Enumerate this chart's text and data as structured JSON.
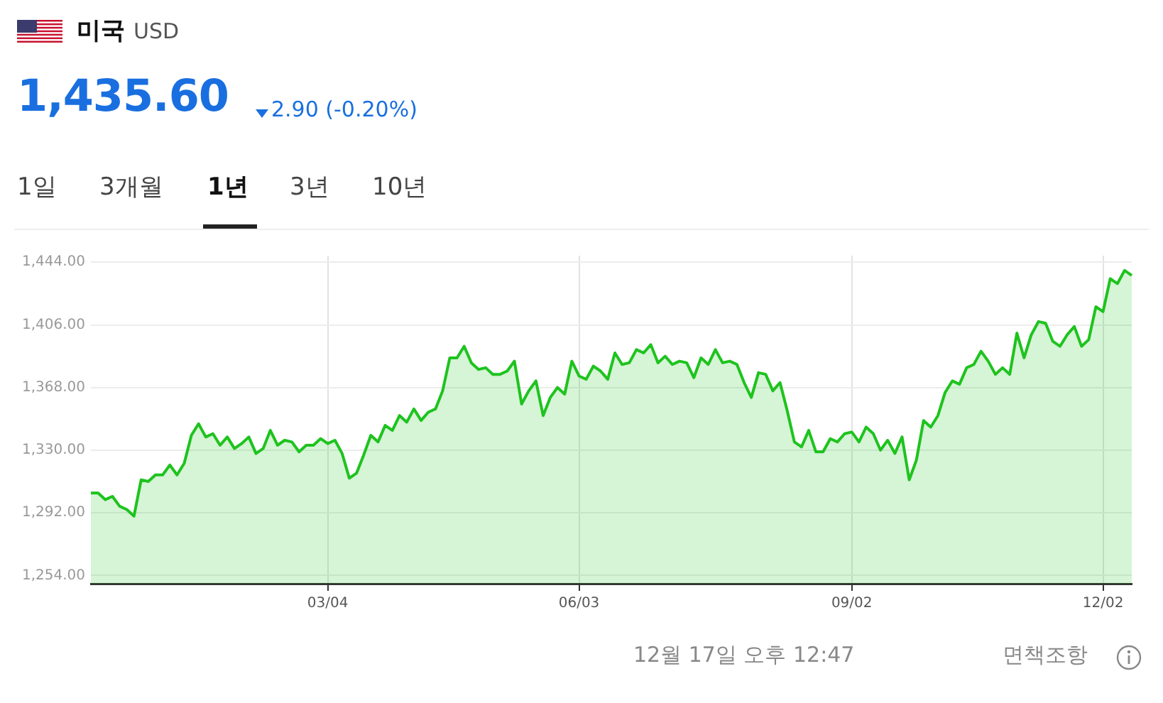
{
  "chart_data": {
    "type": "area",
    "title": "미국",
    "subtitle": "USD",
    "annotations": [
      "1,435.60",
      "2.90 (-0.20%)",
      "1일",
      "3개월",
      "1년",
      "3년",
      "10년",
      "12월 17일 오후 12:47",
      "면책조항"
    ],
    "categories": [
      null,
      null,
      null,
      null,
      null,
      null,
      null,
      null,
      null,
      null,
      null,
      null,
      null,
      null,
      null,
      null,
      null,
      null,
      null,
      null,
      null,
      null,
      null,
      null,
      null,
      null,
      null,
      null,
      null,
      null,
      null,
      null,
      null,
      "03/04",
      null,
      null,
      null,
      null,
      null,
      null,
      null,
      null,
      null,
      null,
      null,
      null,
      null,
      null,
      null,
      null,
      null,
      null,
      null,
      null,
      null,
      null,
      null,
      null,
      null,
      null,
      null,
      null,
      null,
      null,
      null,
      null,
      null,
      null,
      "06/03",
      null,
      null,
      null,
      null,
      null,
      null,
      null,
      null,
      null,
      null,
      null,
      null,
      null,
      null,
      null,
      null,
      null,
      null,
      null,
      null,
      null,
      null,
      null,
      null,
      null,
      null,
      null,
      null,
      null,
      null,
      null,
      null,
      null,
      null,
      null,
      null,
      null,
      "09/02",
      null,
      null,
      null,
      null,
      null,
      null,
      null,
      null,
      null,
      null,
      null,
      null,
      null,
      null,
      null,
      null,
      null,
      null,
      null,
      null,
      null,
      null,
      null,
      null,
      null,
      null,
      null,
      null,
      null,
      null,
      null,
      null,
      null,
      null,
      "12/02",
      null,
      null,
      null,
      null
    ],
    "series": [
      {
        "color": "#1ec31e",
        "values": [
          1304,
          1304,
          1300,
          1302,
          1296,
          1294,
          1290,
          1312,
          1311,
          1315,
          1315,
          1321,
          1315,
          1322,
          1339,
          1346,
          1338,
          1340,
          1333,
          1338,
          1331,
          1334,
          1338,
          1328,
          1331,
          1342,
          1333,
          1336,
          1335,
          1329,
          1333,
          1333,
          1337,
          1334,
          1336,
          1328,
          1313,
          1316,
          1327,
          1339,
          1335,
          1345,
          1342,
          1351,
          1347,
          1355,
          1348,
          1353,
          1355,
          1366,
          1386,
          1386,
          1393,
          1383,
          1379,
          1380,
          1376,
          1376,
          1378,
          1384,
          1358,
          1366,
          1372,
          1351,
          1362,
          1368,
          1364,
          1384,
          1375,
          1373,
          1381,
          1378,
          1373,
          1389,
          1382,
          1383,
          1391,
          1389,
          1394,
          1383,
          1387,
          1382,
          1384,
          1383,
          1374,
          1386,
          1382,
          1391,
          1383,
          1384,
          1382,
          1371,
          1362,
          1377,
          1376,
          1366,
          1371,
          1354,
          1335,
          1332,
          1342,
          1329,
          1329,
          1337,
          1335,
          1340,
          1341,
          1335,
          1344,
          1340,
          1330,
          1336,
          1328,
          1338,
          1312,
          1324,
          1348,
          1344,
          1351,
          1365,
          1372,
          1370,
          1380,
          1382,
          1390,
          1384,
          1376,
          1380,
          1376,
          1401,
          1386,
          1400,
          1408,
          1407,
          1396,
          1393,
          1400,
          1405,
          1393,
          1397,
          1417,
          1414,
          1434,
          1431,
          1439,
          1436
        ]
      }
    ],
    "ylim": [
      1249,
      1448
    ],
    "yticks": [
      {
        "value": 1254,
        "label": "1,254.00"
      },
      {
        "value": 1292,
        "label": "1,292.00"
      },
      {
        "value": 1330,
        "label": "1,330.00"
      },
      {
        "value": 1368,
        "label": "1,368.00"
      },
      {
        "value": 1406,
        "label": "1,406.00"
      },
      {
        "value": 1444,
        "label": "1,444.00"
      }
    ],
    "grid": true,
    "marker": "none",
    "line_style": "solid"
  }
}
